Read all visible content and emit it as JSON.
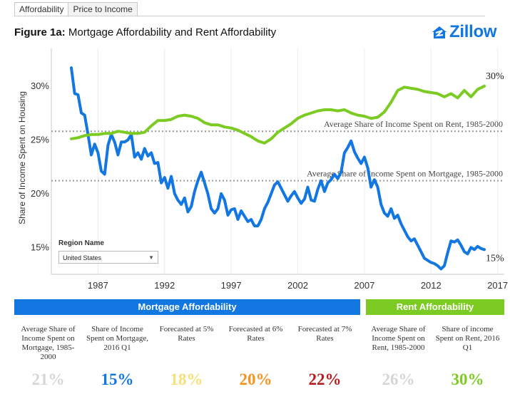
{
  "tabs": [
    "Affordability",
    "Price to Income"
  ],
  "title": {
    "bold": "Figure 1a:",
    "rest": " Mortgage Affordability and Rent Affordability"
  },
  "logo": {
    "text": "Zillow",
    "icon": "zillow-house-icon",
    "color": "#1277e1"
  },
  "region": {
    "label": "Region Name",
    "value": "United States"
  },
  "colors": {
    "mortgage": "#1277e1",
    "rent": "#7ccb22"
  },
  "chart_data": {
    "type": "line",
    "ylabel": "Share of Income Spent on Housing",
    "xlim": [
      1983.5,
      2017.5
    ],
    "ylim": [
      12.5,
      33.5
    ],
    "xticks": [
      1987,
      1992,
      1997,
      2002,
      2007,
      2012,
      2017
    ],
    "yticks": [
      15,
      20,
      25,
      30
    ],
    "ytick_suffix": "%",
    "reference_lines": [
      {
        "label": "Average Share of Income Spent on Rent, 1985-2000",
        "value": 25.8
      },
      {
        "label": "Average Share of Income Spent on Mortgage, 1985-2000",
        "value": 21.2
      }
    ],
    "series": [
      {
        "name": "Mortgage",
        "end_label": "15%",
        "points": [
          [
            1985,
            31.7
          ],
          [
            1985.25,
            29.3
          ],
          [
            1985.5,
            29.2
          ],
          [
            1985.75,
            27.5
          ],
          [
            1986,
            27.3
          ],
          [
            1986.25,
            25.5
          ],
          [
            1986.5,
            23.6
          ],
          [
            1986.75,
            24.6
          ],
          [
            1987,
            23.8
          ],
          [
            1987.25,
            22.1
          ],
          [
            1987.5,
            21.8
          ],
          [
            1987.75,
            24.5
          ],
          [
            1988,
            25.5
          ],
          [
            1988.25,
            24.8
          ],
          [
            1988.5,
            23.6
          ],
          [
            1988.75,
            24.8
          ],
          [
            1989,
            24.8
          ],
          [
            1989.25,
            25.0
          ],
          [
            1989.5,
            25.5
          ],
          [
            1989.75,
            23.4
          ],
          [
            1990,
            23.8
          ],
          [
            1990.25,
            23.2
          ],
          [
            1990.5,
            24.2
          ],
          [
            1990.75,
            23.5
          ],
          [
            1991,
            23.8
          ],
          [
            1991.25,
            22.8
          ],
          [
            1991.5,
            22.9
          ],
          [
            1991.75,
            21.0
          ],
          [
            1992,
            21.5
          ],
          [
            1992.25,
            20.5
          ],
          [
            1992.5,
            21.6
          ],
          [
            1992.75,
            20.0
          ],
          [
            1993,
            19.4
          ],
          [
            1993.25,
            19.0
          ],
          [
            1993.5,
            19.6
          ],
          [
            1993.75,
            18.3
          ],
          [
            1994,
            18.8
          ],
          [
            1994.25,
            20.2
          ],
          [
            1994.5,
            21.2
          ],
          [
            1994.75,
            22.0
          ],
          [
            1995,
            21.0
          ],
          [
            1995.25,
            20.0
          ],
          [
            1995.5,
            18.6
          ],
          [
            1995.75,
            18.2
          ],
          [
            1996,
            18.6
          ],
          [
            1996.25,
            20.0
          ],
          [
            1996.5,
            19.4
          ],
          [
            1996.75,
            18.0
          ],
          [
            1997,
            18.5
          ],
          [
            1997.25,
            18.6
          ],
          [
            1997.5,
            17.6
          ],
          [
            1997.75,
            18.4
          ],
          [
            1998,
            17.9
          ],
          [
            1998.25,
            17.4
          ],
          [
            1998.5,
            17.6
          ],
          [
            1998.75,
            17.0
          ],
          [
            1999,
            17.0
          ],
          [
            1999.25,
            17.6
          ],
          [
            1999.5,
            18.6
          ],
          [
            1999.75,
            19.2
          ],
          [
            2000,
            20.0
          ],
          [
            2000.25,
            20.8
          ],
          [
            2000.5,
            21.1
          ],
          [
            2000.75,
            20.5
          ],
          [
            2001,
            19.9
          ],
          [
            2001.25,
            19.3
          ],
          [
            2001.5,
            19.8
          ],
          [
            2001.75,
            20.2
          ],
          [
            2002,
            19.6
          ],
          [
            2002.25,
            19.1
          ],
          [
            2002.5,
            19.5
          ],
          [
            2002.75,
            20.6
          ],
          [
            2003,
            19.4
          ],
          [
            2003.25,
            19.3
          ],
          [
            2003.5,
            20.4
          ],
          [
            2003.75,
            21.2
          ],
          [
            2004,
            20.2
          ],
          [
            2004.25,
            21.0
          ],
          [
            2004.5,
            21.3
          ],
          [
            2004.75,
            21.8
          ],
          [
            2005,
            21.4
          ],
          [
            2005.25,
            22.0
          ],
          [
            2005.5,
            23.8
          ],
          [
            2005.75,
            24.3
          ],
          [
            2006,
            24.9
          ],
          [
            2006.25,
            23.9
          ],
          [
            2006.5,
            23.3
          ],
          [
            2006.75,
            22.8
          ],
          [
            2007,
            23.4
          ],
          [
            2007.25,
            22.4
          ],
          [
            2007.5,
            20.6
          ],
          [
            2007.75,
            21.3
          ],
          [
            2008,
            20.6
          ],
          [
            2008.25,
            19.0
          ],
          [
            2008.5,
            18.2
          ],
          [
            2008.75,
            17.9
          ],
          [
            2009,
            18.6
          ],
          [
            2009.25,
            17.7
          ],
          [
            2009.5,
            18.0
          ],
          [
            2009.75,
            17.2
          ],
          [
            2010,
            16.6
          ],
          [
            2010.25,
            16.0
          ],
          [
            2010.5,
            15.6
          ],
          [
            2010.75,
            15.8
          ],
          [
            2011,
            15.2
          ],
          [
            2011.25,
            14.6
          ],
          [
            2011.5,
            14.0
          ],
          [
            2011.75,
            13.8
          ],
          [
            2012,
            13.6
          ],
          [
            2012.25,
            13.5
          ],
          [
            2012.5,
            13.3
          ],
          [
            2012.75,
            13.0
          ],
          [
            2013,
            13.3
          ],
          [
            2013.25,
            14.5
          ],
          [
            2013.5,
            15.6
          ],
          [
            2013.75,
            15.5
          ],
          [
            2014,
            15.7
          ],
          [
            2014.25,
            15.2
          ],
          [
            2014.5,
            14.6
          ],
          [
            2014.75,
            14.4
          ],
          [
            2015,
            15.0
          ],
          [
            2015.25,
            14.8
          ],
          [
            2015.5,
            15.1
          ],
          [
            2015.75,
            14.9
          ],
          [
            2016,
            14.8
          ]
        ]
      },
      {
        "name": "Rent",
        "end_label": "30%",
        "points": [
          [
            1985,
            25.1
          ],
          [
            1985.5,
            25.2
          ],
          [
            1986,
            25.4
          ],
          [
            1986.5,
            25.5
          ],
          [
            1987,
            25.5
          ],
          [
            1987.5,
            25.6
          ],
          [
            1988,
            25.6
          ],
          [
            1988.5,
            25.8
          ],
          [
            1989,
            25.7
          ],
          [
            1989.5,
            25.6
          ],
          [
            1990,
            25.6
          ],
          [
            1990.5,
            25.7
          ],
          [
            1991,
            26.3
          ],
          [
            1991.5,
            26.8
          ],
          [
            1992,
            26.8
          ],
          [
            1992.5,
            26.9
          ],
          [
            1993,
            27.2
          ],
          [
            1993.5,
            27.3
          ],
          [
            1994,
            27.2
          ],
          [
            1994.5,
            27.0
          ],
          [
            1995,
            26.6
          ],
          [
            1995.5,
            26.4
          ],
          [
            1996,
            26.4
          ],
          [
            1996.5,
            26.2
          ],
          [
            1997,
            26.1
          ],
          [
            1997.5,
            25.9
          ],
          [
            1998,
            25.6
          ],
          [
            1998.5,
            25.3
          ],
          [
            1999,
            24.9
          ],
          [
            1999.5,
            24.7
          ],
          [
            2000,
            25.1
          ],
          [
            2000.5,
            25.7
          ],
          [
            2001,
            26.1
          ],
          [
            2001.5,
            26.5
          ],
          [
            2002,
            27.0
          ],
          [
            2002.5,
            27.3
          ],
          [
            2003,
            27.5
          ],
          [
            2003.5,
            27.7
          ],
          [
            2004,
            27.8
          ],
          [
            2004.5,
            27.8
          ],
          [
            2005,
            27.7
          ],
          [
            2005.5,
            27.8
          ],
          [
            2006,
            27.5
          ],
          [
            2006.5,
            27.3
          ],
          [
            2007,
            27.2
          ],
          [
            2007.5,
            27.0
          ],
          [
            2008,
            27.1
          ],
          [
            2008.5,
            27.6
          ],
          [
            2009,
            28.5
          ],
          [
            2009.5,
            29.6
          ],
          [
            2010,
            29.9
          ],
          [
            2010.5,
            29.8
          ],
          [
            2011,
            29.7
          ],
          [
            2011.5,
            29.5
          ],
          [
            2012,
            29.4
          ],
          [
            2012.5,
            29.3
          ],
          [
            2013,
            29.0
          ],
          [
            2013.5,
            29.3
          ],
          [
            2014,
            28.9
          ],
          [
            2014.5,
            29.6
          ],
          [
            2015,
            29.0
          ],
          [
            2015.5,
            29.7
          ],
          [
            2016,
            30.0
          ]
        ]
      }
    ]
  },
  "bands": {
    "mortgage": "Mortgage Affordability",
    "rent": "Rent Affordability"
  },
  "stats": [
    {
      "label": "Average Share of Income Spent on Mortgage, 1985-2000",
      "value": "21%",
      "color": "#d6d6d6"
    },
    {
      "label": "Share of Income Spent on Mortgage, 2016 Q1",
      "value": "15%",
      "color": "#1277e1"
    },
    {
      "label": "Forecasted at 5% Rates",
      "value": "18%",
      "color": "#f7df79"
    },
    {
      "label": "Forecasted at 6% Rates",
      "value": "20%",
      "color": "#f7931e"
    },
    {
      "label": "Forecasted at 7% Rates",
      "value": "22%",
      "color": "#b41d1d"
    },
    {
      "label": "Average Share of Income Spent on Rent, 1985-2000",
      "value": "26%",
      "color": "#d6d6d6"
    },
    {
      "label": "Share of income Spent on Rent, 2016 Q1",
      "value": "30%",
      "color": "#7ccb22"
    }
  ]
}
